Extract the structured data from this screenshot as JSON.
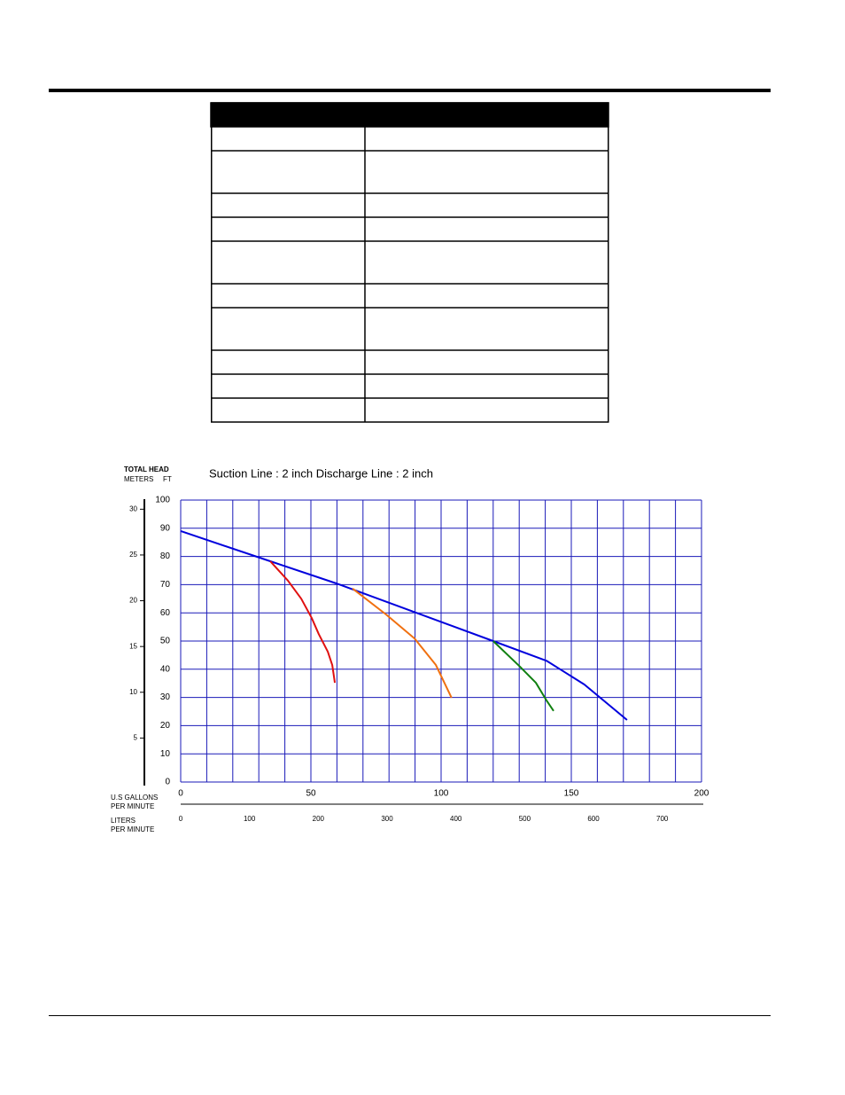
{
  "chart_data": {
    "type": "line",
    "title": "Suction  Line : 2 inch    Discharge Line : 2 inch",
    "y_label_top": "TOTAL HEAD",
    "y2_label": "METERS",
    "y_label": "FT",
    "x_label": [
      "U.S GALLONS",
      "PER MINUTE"
    ],
    "x2_label": [
      "LITERS",
      "PER MINUTE"
    ],
    "xlim": [
      0,
      200
    ],
    "xticks": [
      0,
      50,
      100,
      150,
      200
    ],
    "xgrid": [
      0,
      10,
      20,
      30,
      40,
      50,
      60,
      70,
      80,
      90,
      100,
      110,
      120,
      130,
      140,
      150,
      160,
      170,
      180,
      190,
      200
    ],
    "x2lim": [
      0,
      757
    ],
    "x2ticks": [
      0,
      100,
      200,
      300,
      400,
      500,
      600,
      700
    ],
    "ylim": [
      0,
      100
    ],
    "yticks": [
      0,
      10,
      20,
      30,
      40,
      50,
      60,
      70,
      80,
      90,
      100
    ],
    "y2lim": [
      0,
      31
    ],
    "y2ticks": [
      5,
      10,
      15,
      20,
      25,
      30
    ],
    "grid": true,
    "grid_color": "#1a1ab8",
    "series": [
      {
        "color": "#0000dd",
        "x": [
          0,
          34.4,
          59.9,
          120,
          140.5,
          155,
          165.3,
          171.4
        ],
        "values": [
          89,
          78.3,
          70.4,
          50,
          43,
          34.6,
          26.7,
          22
        ]
      },
      {
        "color": "#e01010",
        "x": [
          34.4,
          41.2,
          46.3,
          50.3,
          53,
          56.5,
          58.2,
          59.2
        ],
        "values": [
          78.3,
          71.4,
          65,
          58.2,
          52.5,
          46.2,
          41.5,
          35.2
        ]
      },
      {
        "color": "#f07010",
        "x": [
          66,
          78.9,
          89.8,
          98,
          104
        ],
        "values": [
          68.6,
          59.4,
          50.9,
          41.5,
          29.9
        ]
      },
      {
        "color": "#108010",
        "x": [
          120,
          130.3,
          136.4,
          140.5,
          143.2
        ],
        "values": [
          50,
          40.9,
          35.2,
          28.9,
          25.2
        ]
      }
    ]
  }
}
